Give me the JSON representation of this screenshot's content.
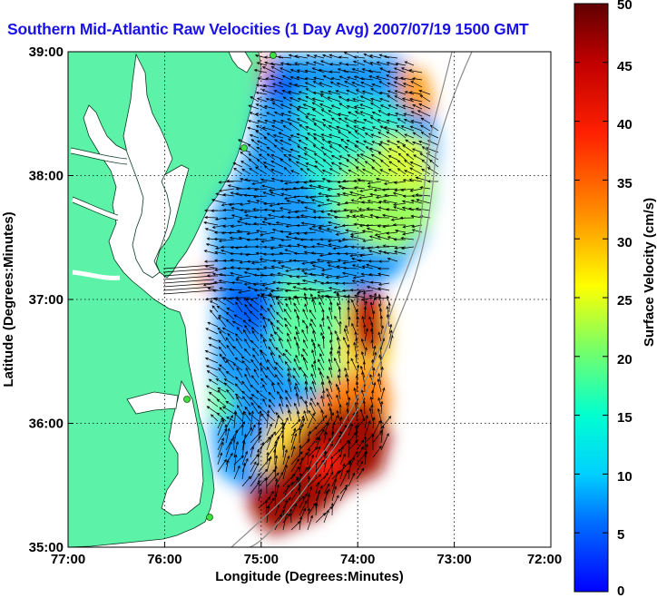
{
  "title": "Southern Mid-Atlantic Raw Velocities (1 Day Avg) 2007/07/19 1500 GMT",
  "x_axis": {
    "label": "Longitude (Degrees:Minutes)",
    "ticks": [
      "77:00",
      "76:00",
      "75:00",
      "74:00",
      "73:00",
      "72:00"
    ]
  },
  "y_axis": {
    "label": "Latitude (Degrees:Minutes)",
    "ticks": [
      "39:00",
      "38:00",
      "37:00",
      "36:00",
      "35:00"
    ]
  },
  "colorbar": {
    "label": "Surface Velocity (cm/s)",
    "ticks": [
      "50",
      "45",
      "40",
      "35",
      "30",
      "25",
      "20",
      "15",
      "10",
      "5",
      "0"
    ],
    "min": 0,
    "max": 50,
    "colormap": [
      "#0000ff",
      "#00b4ff",
      "#00ffd0",
      "#80ff60",
      "#ffff00",
      "#ff9000",
      "#ff2000",
      "#c00000",
      "#600000"
    ]
  },
  "map": {
    "extent": {
      "lon_min": -77,
      "lon_max": -72,
      "lat_min": 35,
      "lat_max": 39
    },
    "land_color": "#5cf2a8",
    "grid": "dotted",
    "station_color": "#40e040"
  }
}
